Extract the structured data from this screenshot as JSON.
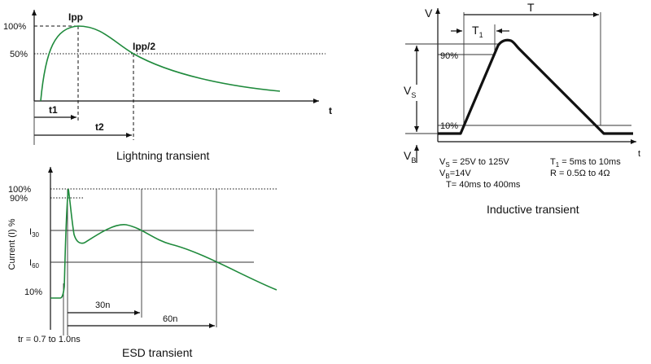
{
  "lightning": {
    "caption": "Lightning transient",
    "y100": "100%",
    "y50": "50%",
    "ipp": "Ipp",
    "ipp2": "Ipp/2",
    "t1": "t1",
    "t2": "t2",
    "t": "t"
  },
  "esd": {
    "caption": "ESD transient",
    "ylabel": "Current (I) %",
    "y100": "100%",
    "y90": "90%",
    "i30_main": "I",
    "i30_sub": "30",
    "i60_main": "I",
    "i60_sub": "60",
    "y10": "10%",
    "n30": "30n",
    "n60": "60n",
    "tr": "tr = 0.7 to 1.0ns"
  },
  "inductive": {
    "caption": "Inductive transient",
    "v": "V",
    "t": "t",
    "T": "T",
    "T1_main": "T",
    "T1_sub": "1",
    "p90": "90%",
    "p10": "10%",
    "vs_main": "V",
    "vs_sub": "S",
    "vb_main": "V",
    "vb_sub": "B",
    "spec_vs_main": "V",
    "spec_vs_sub": "S",
    "spec_vs_rest": " = 25V to 125V",
    "spec_vb_main": "V",
    "spec_vb_sub": "B",
    "spec_vb_rest": "=14V",
    "spec_T": "T= 40ms to 400ms",
    "spec_T1_main": "T",
    "spec_T1_sub": "1",
    "spec_T1_rest": " = 5ms to 10ms",
    "spec_R": "R = 0.5Ω to 4Ω"
  },
  "colors": {
    "curve": "#1f8a3c",
    "ink": "#111111"
  }
}
